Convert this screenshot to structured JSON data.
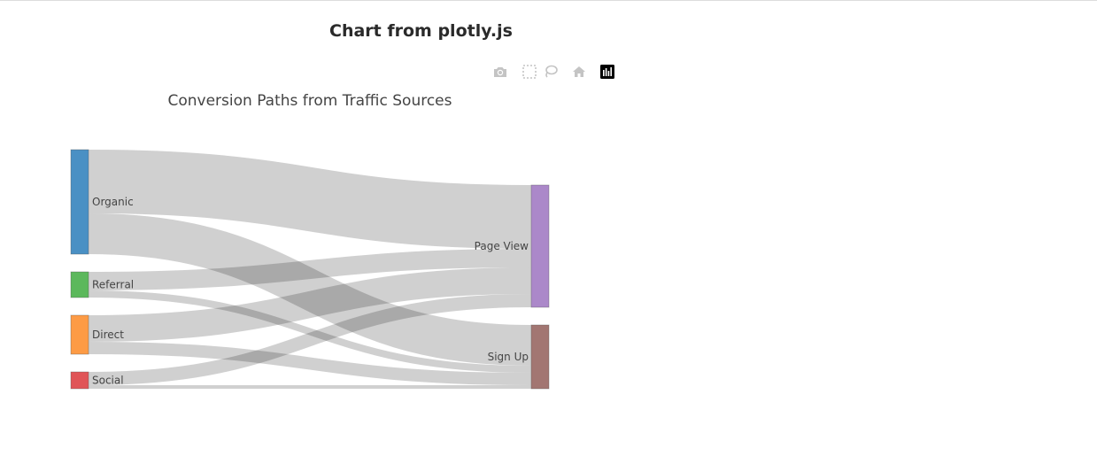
{
  "page": {
    "title": "Chart from plotly.js"
  },
  "modebar": {
    "buttons": [
      {
        "name": "camera-icon",
        "label": "Download plot as a png"
      },
      {
        "name": "box-select-icon",
        "label": "Box Select"
      },
      {
        "name": "lasso-select-icon",
        "label": "Lasso Select"
      },
      {
        "name": "home-icon",
        "label": "Reset axes"
      },
      {
        "name": "plotly-logo-icon",
        "label": "Produced with Plotly"
      }
    ],
    "icon_color": "#c4c4c4"
  },
  "chart_data": {
    "type": "sankey",
    "title": "Conversion Paths from Traffic Sources",
    "link_color": "#c8c8c8",
    "nodes": [
      {
        "label": "Organic",
        "color": "#4a90c4"
      },
      {
        "label": "Referral",
        "color": "#5cb85c"
      },
      {
        "label": "Direct",
        "color": "#fd9b45"
      },
      {
        "label": "Social",
        "color": "#e05457"
      },
      {
        "label": "Page View",
        "color": "#ab88c9"
      },
      {
        "label": "Sign Up",
        "color": "#a27672"
      }
    ],
    "links": [
      {
        "source": "Organic",
        "target": "Page View",
        "value": 72
      },
      {
        "source": "Organic",
        "target": "Sign Up",
        "value": 46
      },
      {
        "source": "Referral",
        "target": "Page View",
        "value": 21
      },
      {
        "source": "Referral",
        "target": "Sign Up",
        "value": 8
      },
      {
        "source": "Direct",
        "target": "Page View",
        "value": 30
      },
      {
        "source": "Direct",
        "target": "Sign Up",
        "value": 14
      },
      {
        "source": "Social",
        "target": "Page View",
        "value": 15
      },
      {
        "source": "Social",
        "target": "Sign Up",
        "value": 4
      }
    ]
  }
}
